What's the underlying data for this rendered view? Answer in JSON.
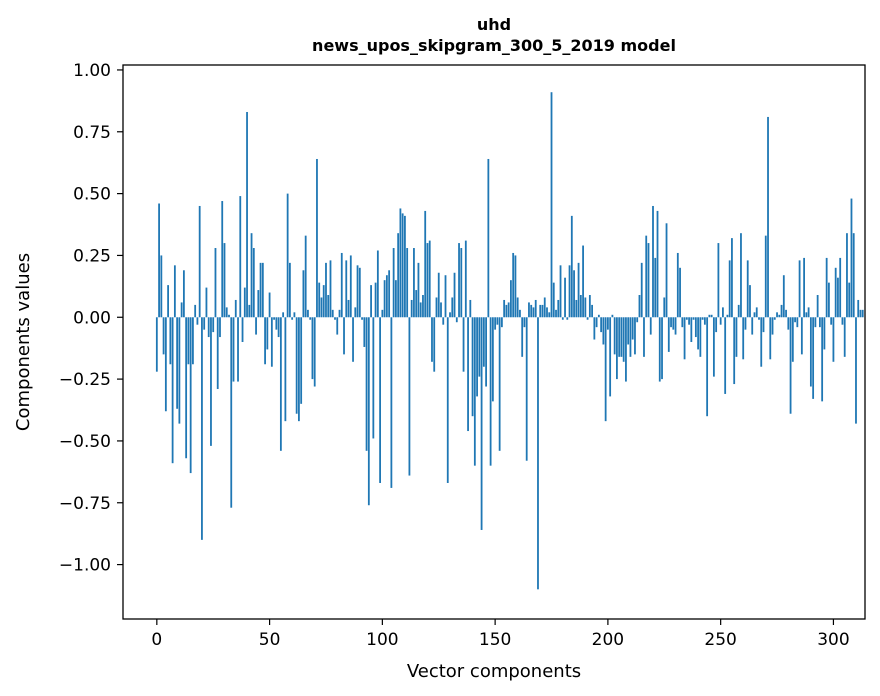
{
  "chart_data": {
    "type": "bar",
    "title_line1": "uhd",
    "title_line2": "news_upos_skipgram_300_5_2019 model",
    "xlabel": "Vector components",
    "ylabel": "Components values",
    "xlim": [
      -15,
      314
    ],
    "ylim": [
      -1.22,
      1.02
    ],
    "xticks": [
      0,
      50,
      100,
      150,
      200,
      250,
      300
    ],
    "yticks": [
      1.0,
      0.75,
      0.5,
      0.25,
      0.0,
      -0.25,
      -0.5,
      -0.75,
      -1.0
    ],
    "ytick_labels": [
      "1.00",
      "0.75",
      "0.50",
      "0.25",
      "0.00",
      "−0.25",
      "−0.50",
      "−0.75",
      "−1.00"
    ],
    "bar_color": "#1f77b4",
    "values": [
      -0.22,
      0.46,
      0.25,
      -0.15,
      -0.38,
      0.13,
      -0.19,
      -0.59,
      0.21,
      -0.37,
      -0.43,
      0.06,
      0.19,
      -0.57,
      -0.19,
      -0.63,
      -0.19,
      0.05,
      -0.03,
      0.45,
      -0.9,
      -0.05,
      0.12,
      -0.08,
      -0.52,
      -0.06,
      0.28,
      -0.29,
      -0.08,
      0.47,
      0.3,
      0.04,
      0.01,
      -0.77,
      -0.26,
      0.07,
      -0.26,
      0.49,
      -0.1,
      0.12,
      0.83,
      0.05,
      0.34,
      0.28,
      -0.07,
      0.11,
      0.22,
      0.22,
      -0.19,
      -0.13,
      0.1,
      -0.2,
      -0.01,
      -0.05,
      -0.08,
      -0.54,
      0.02,
      -0.42,
      0.5,
      0.22,
      -0.01,
      0.02,
      -0.39,
      -0.42,
      -0.35,
      0.19,
      0.33,
      0.03,
      -0.01,
      -0.25,
      -0.28,
      0.64,
      0.14,
      0.08,
      0.13,
      0.22,
      0.09,
      0.23,
      0.03,
      -0.01,
      -0.07,
      0.03,
      0.26,
      -0.15,
      0.23,
      0.07,
      0.25,
      -0.18,
      0.04,
      0.21,
      0.2,
      -0.01,
      -0.12,
      -0.54,
      -0.76,
      0.13,
      -0.49,
      0.14,
      0.27,
      -0.67,
      0.03,
      0.15,
      0.17,
      0.19,
      -0.69,
      0.28,
      0.15,
      0.34,
      0.44,
      0.42,
      0.41,
      0.28,
      -0.64,
      0.07,
      0.28,
      0.11,
      0.22,
      0.06,
      0.09,
      0.43,
      0.3,
      0.31,
      -0.18,
      -0.22,
      0.08,
      0.18,
      0.06,
      -0.03,
      0.17,
      -0.67,
      0.02,
      0.08,
      0.18,
      -0.02,
      0.3,
      0.28,
      -0.22,
      0.31,
      -0.46,
      0.07,
      -0.4,
      -0.6,
      -0.32,
      -0.24,
      -0.86,
      -0.2,
      -0.28,
      0.64,
      -0.6,
      -0.34,
      -0.05,
      -0.03,
      -0.54,
      -0.04,
      0.07,
      0.05,
      0.06,
      0.15,
      0.26,
      0.25,
      0.08,
      0.03,
      -0.16,
      -0.04,
      -0.58,
      0.06,
      0.05,
      0.04,
      0.07,
      -1.1,
      0.05,
      0.05,
      0.08,
      0.04,
      0.02,
      0.91,
      0.14,
      0.03,
      0.07,
      0.21,
      -0.01,
      0.16,
      -0.01,
      0.21,
      0.41,
      0.19,
      0.07,
      0.22,
      0.09,
      0.29,
      0.08,
      -0.01,
      0.09,
      0.05,
      -0.09,
      -0.04,
      0.01,
      -0.06,
      -0.11,
      -0.42,
      -0.05,
      -0.32,
      0.01,
      -0.15,
      -0.25,
      -0.16,
      -0.16,
      -0.18,
      -0.26,
      -0.11,
      -0.16,
      -0.09,
      -0.15,
      -0.02,
      0.09,
      0.22,
      -0.16,
      0.33,
      0.3,
      -0.07,
      0.45,
      0.24,
      0.43,
      -0.26,
      -0.25,
      0.08,
      0.38,
      -0.14,
      -0.04,
      -0.05,
      -0.07,
      0.26,
      0.2,
      -0.04,
      -0.17,
      -0.01,
      -0.03,
      -0.1,
      -0.01,
      -0.08,
      -0.13,
      -0.16,
      -0.01,
      -0.03,
      -0.4,
      0.01,
      0.01,
      -0.24,
      -0.06,
      0.3,
      -0.03,
      0.04,
      -0.31,
      0.01,
      0.23,
      0.32,
      -0.27,
      -0.16,
      0.05,
      0.34,
      -0.17,
      -0.05,
      0.23,
      0.13,
      -0.07,
      0.02,
      0.04,
      -0.01,
      -0.2,
      -0.06,
      0.33,
      0.81,
      -0.17,
      -0.07,
      -0.01,
      0.02,
      0.01,
      0.05,
      0.17,
      0.03,
      -0.05,
      -0.39,
      -0.18,
      -0.02,
      -0.04,
      0.23,
      -0.15,
      0.24,
      0.02,
      0.04,
      -0.28,
      -0.33,
      -0.04,
      0.09,
      -0.04,
      -0.34,
      -0.13,
      0.24,
      0.14,
      -0.03,
      -0.18,
      0.2,
      0.16,
      0.24,
      -0.03,
      -0.16,
      0.34,
      0.14,
      0.48,
      0.34,
      -0.43,
      0.07,
      0.03,
      0.03
    ]
  }
}
